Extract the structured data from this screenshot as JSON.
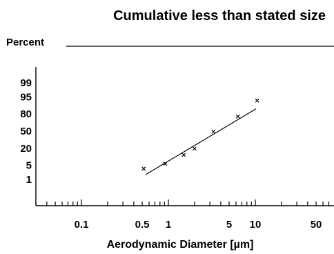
{
  "chart_data": {
    "type": "scatter",
    "title": "Cumulative less than stated size",
    "ylabel": "Percent",
    "xlabel": "Aerodynamic Diameter [µm]",
    "x_scale": "log",
    "y_scale": "probability",
    "xlim": [
      0.02,
      100
    ],
    "x_ticks": [
      {
        "value": 0.1,
        "label": "0.1"
      },
      {
        "value": 0.5,
        "label": "0.5"
      },
      {
        "value": 1,
        "label": "1"
      },
      {
        "value": 5,
        "label": "5"
      },
      {
        "value": 10,
        "label": "10"
      },
      {
        "value": 50,
        "label": "50"
      }
    ],
    "y_ticks": [
      {
        "value": 99,
        "label": "99"
      },
      {
        "value": 95,
        "label": "95"
      },
      {
        "value": 80,
        "label": "80"
      },
      {
        "value": 50,
        "label": "50"
      },
      {
        "value": 20,
        "label": "20"
      },
      {
        "value": 5,
        "label": "5"
      },
      {
        "value": 1,
        "label": "1"
      }
    ],
    "points": [
      {
        "x": 0.52,
        "y": 3.5
      },
      {
        "x": 0.92,
        "y": 5.8
      },
      {
        "x": 1.5,
        "y": 12.5
      },
      {
        "x": 2.0,
        "y": 20
      },
      {
        "x": 3.3,
        "y": 49
      },
      {
        "x": 6.3,
        "y": 76
      },
      {
        "x": 10.5,
        "y": 93
      }
    ],
    "fit_line": [
      {
        "x": 0.55,
        "y": 1.8
      },
      {
        "x": 10.2,
        "y": 86
      }
    ],
    "grid": false,
    "marker": "×",
    "colors": {
      "ink": "#000000",
      "background": "#ffffff"
    }
  }
}
